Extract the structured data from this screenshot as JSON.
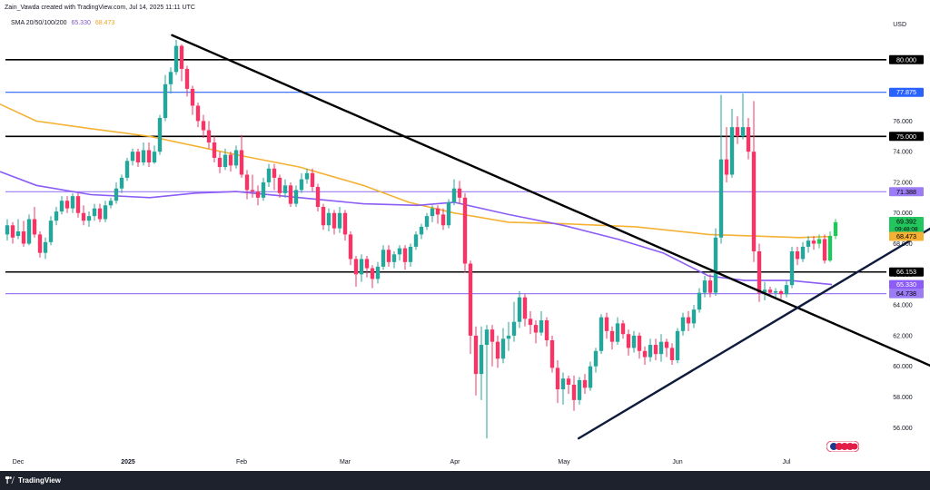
{
  "header": {
    "created_by": "Zain_Vawda created with TradingView.com, Jul 14, 2025 11:11 UTC",
    "indicator_label": "SMA 20/50/100/200",
    "indicator_value_1": "65.330",
    "indicator_value_2": "68.473",
    "currency": "USD"
  },
  "footer": {
    "brand": "TradingView"
  },
  "colors": {
    "up": "#26a69a",
    "up_bright": "#22c55e",
    "down": "#f23666",
    "sma_orange": "#f5b133",
    "sma_purple": "#8b5cf6",
    "line_black": "#000000",
    "line_blue": "#2962ff",
    "line_purple": "#9c7cf4",
    "trend_navy": "#0f1b3d"
  },
  "chart_data": {
    "type": "candlestick",
    "title": "",
    "xlabel": "",
    "ylabel": "USD",
    "ylim": [
      54.3,
      82.0
    ],
    "x_ticks": [
      "Dec",
      "2025",
      "Feb",
      "Mar",
      "Apr",
      "May",
      "Jun",
      "Jul"
    ],
    "y_ticks": [
      "56.000",
      "58.000",
      "60.000",
      "62.000",
      "64.000",
      "66.000",
      "68.000",
      "70.000",
      "72.000",
      "74.000",
      "76.000",
      "78.000"
    ],
    "price_labels": [
      {
        "text": "80.000",
        "value": 80.0,
        "style": "black"
      },
      {
        "text": "77.875",
        "value": 77.875,
        "style": "blue"
      },
      {
        "text": "75.000",
        "value": 75.0,
        "style": "black"
      },
      {
        "text": "71.388",
        "value": 71.388,
        "style": "purple"
      },
      {
        "text": "69.392",
        "value": 69.392,
        "style": "green",
        "sub": "09:48:08"
      },
      {
        "text": "68.473",
        "value": 68.473,
        "style": "orange"
      },
      {
        "text": "66.153",
        "value": 66.153,
        "style": "black"
      },
      {
        "text": "65.330",
        "value": 65.33,
        "style": "violet"
      },
      {
        "text": "64.738",
        "value": 64.738,
        "style": "purple"
      }
    ],
    "horizontal_levels": [
      {
        "value": 80.0,
        "color": "black"
      },
      {
        "value": 77.875,
        "color": "blue"
      },
      {
        "value": 75.0,
        "color": "black"
      },
      {
        "value": 71.388,
        "color": "purple"
      },
      {
        "value": 66.153,
        "color": "black"
      },
      {
        "value": 64.738,
        "color": "purple"
      }
    ],
    "trendlines": [
      {
        "name": "down",
        "from": [
          "2025-01-13",
          81.6
        ],
        "to": [
          "2025-08-15",
          59.6
        ]
      },
      {
        "name": "up",
        "from": [
          "2025-05-05",
          55.3
        ],
        "to": [
          "2025-08-15",
          69.6
        ]
      }
    ],
    "last_price": 69.392,
    "sma_200": [
      [
        0,
        77.1
      ],
      [
        40,
        76.0
      ],
      [
        100,
        75.5
      ],
      [
        165,
        75.0
      ],
      [
        260,
        73.8
      ],
      [
        330,
        73.0
      ],
      [
        400,
        71.8
      ],
      [
        450,
        70.7
      ],
      [
        500,
        70.0
      ],
      [
        560,
        69.4
      ],
      [
        620,
        69.3
      ],
      [
        700,
        69.1
      ],
      [
        780,
        68.6
      ],
      [
        830,
        68.5
      ],
      [
        880,
        68.4
      ],
      [
        916,
        68.47
      ]
    ],
    "sma_50": [
      [
        0,
        72.7
      ],
      [
        40,
        71.8
      ],
      [
        100,
        71.2
      ],
      [
        165,
        71.0
      ],
      [
        215,
        71.3
      ],
      [
        260,
        71.4
      ],
      [
        330,
        71.0
      ],
      [
        400,
        70.6
      ],
      [
        460,
        70.5
      ],
      [
        500,
        70.7
      ],
      [
        560,
        69.9
      ],
      [
        620,
        69.2
      ],
      [
        680,
        68.3
      ],
      [
        730,
        67.4
      ],
      [
        780,
        65.9
      ],
      [
        820,
        65.6
      ],
      [
        870,
        65.6
      ],
      [
        916,
        65.33
      ]
    ],
    "candles": [
      [
        8,
        68.6,
        69.2,
        69.6,
        68.2
      ],
      [
        14,
        69.2,
        68.4,
        69.4,
        68.0
      ],
      [
        20,
        68.5,
        68.8,
        69.6,
        68.3
      ],
      [
        26,
        68.8,
        68.0,
        69.5,
        67.8
      ],
      [
        32,
        68.0,
        69.6,
        69.9,
        67.9
      ],
      [
        38,
        69.6,
        68.6,
        70.4,
        68.4
      ],
      [
        44,
        68.6,
        67.4,
        68.8,
        67.1
      ],
      [
        50,
        67.4,
        68.1,
        68.4,
        67.0
      ],
      [
        56,
        68.1,
        69.5,
        69.8,
        67.9
      ],
      [
        62,
        69.5,
        70.1,
        70.4,
        69.2
      ],
      [
        68,
        70.1,
        70.8,
        71.1,
        69.9
      ],
      [
        74,
        70.8,
        70.3,
        71.1,
        70.0
      ],
      [
        80,
        70.3,
        71.1,
        71.3,
        70.0
      ],
      [
        86,
        71.1,
        70.0,
        71.3,
        69.7
      ],
      [
        92,
        70.0,
        69.5,
        70.5,
        69.2
      ],
      [
        98,
        69.5,
        69.8,
        70.1,
        69.1
      ],
      [
        104,
        69.8,
        70.3,
        70.6,
        69.5
      ],
      [
        110,
        70.3,
        69.6,
        70.6,
        69.4
      ],
      [
        116,
        69.6,
        70.5,
        70.8,
        69.4
      ],
      [
        122,
        70.5,
        70.8,
        71.0,
        70.3
      ],
      [
        128,
        70.8,
        71.6,
        72.0,
        70.6
      ],
      [
        134,
        71.6,
        72.3,
        72.5,
        71.3
      ],
      [
        140,
        72.3,
        73.4,
        73.6,
        72.1
      ],
      [
        146,
        73.4,
        74.0,
        74.2,
        73.1
      ],
      [
        152,
        74.0,
        73.3,
        74.2,
        73.0
      ],
      [
        158,
        73.3,
        74.1,
        74.6,
        73.1
      ],
      [
        164,
        74.1,
        73.3,
        74.6,
        73.0
      ],
      [
        170,
        73.3,
        74.0,
        74.4,
        73.2
      ],
      [
        176,
        74.0,
        76.2,
        76.4,
        73.8
      ],
      [
        182,
        76.2,
        78.4,
        79.0,
        76.0
      ],
      [
        188,
        78.4,
        79.2,
        79.5,
        77.8
      ],
      [
        194,
        79.2,
        80.9,
        81.3,
        79.0
      ],
      [
        200,
        80.9,
        79.4,
        81.0,
        78.6
      ],
      [
        206,
        79.4,
        78.1,
        79.6,
        77.6
      ],
      [
        212,
        78.1,
        77.0,
        78.3,
        76.4
      ],
      [
        218,
        77.0,
        76.0,
        77.2,
        75.6
      ],
      [
        224,
        76.0,
        75.4,
        76.4,
        74.9
      ],
      [
        230,
        75.4,
        74.6,
        76.0,
        74.2
      ],
      [
        236,
        74.6,
        73.6,
        75.0,
        73.3
      ],
      [
        242,
        73.6,
        73.0,
        74.0,
        72.6
      ],
      [
        248,
        73.0,
        73.8,
        74.2,
        72.8
      ],
      [
        254,
        73.8,
        73.1,
        74.0,
        72.7
      ],
      [
        260,
        73.1,
        74.1,
        74.4,
        72.9
      ],
      [
        266,
        74.1,
        72.5,
        75.1,
        72.3
      ],
      [
        272,
        72.5,
        71.5,
        72.8,
        70.9
      ],
      [
        278,
        71.5,
        71.4,
        72.5,
        71.0
      ],
      [
        284,
        71.4,
        71.0,
        71.8,
        70.5
      ],
      [
        290,
        71.0,
        72.0,
        72.3,
        70.8
      ],
      [
        296,
        72.0,
        72.9,
        73.2,
        71.7
      ],
      [
        302,
        72.9,
        72.3,
        73.2,
        71.5
      ],
      [
        308,
        72.3,
        71.3,
        72.5,
        71.0
      ],
      [
        314,
        71.3,
        71.8,
        72.2,
        71.0
      ],
      [
        320,
        71.8,
        70.6,
        72.0,
        70.4
      ],
      [
        326,
        70.6,
        71.5,
        71.8,
        70.4
      ],
      [
        332,
        71.5,
        72.2,
        72.6,
        71.3
      ],
      [
        338,
        72.2,
        72.6,
        72.9,
        71.9
      ],
      [
        344,
        72.6,
        71.7,
        72.9,
        71.4
      ],
      [
        350,
        71.7,
        70.4,
        71.9,
        70.1
      ],
      [
        356,
        70.4,
        69.2,
        70.6,
        68.9
      ],
      [
        362,
        69.2,
        70.0,
        70.3,
        68.8
      ],
      [
        368,
        70.0,
        69.0,
        70.2,
        68.6
      ],
      [
        374,
        69.0,
        70.0,
        70.4,
        68.7
      ],
      [
        380,
        70.0,
        68.6,
        70.2,
        68.2
      ],
      [
        386,
        68.6,
        67.0,
        68.8,
        66.6
      ],
      [
        392,
        67.0,
        66.0,
        67.2,
        65.2
      ],
      [
        398,
        66.0,
        67.0,
        67.3,
        65.5
      ],
      [
        404,
        67.0,
        66.4,
        67.2,
        65.8
      ],
      [
        410,
        66.4,
        65.7,
        66.6,
        65.1
      ],
      [
        416,
        65.7,
        66.5,
        66.8,
        65.4
      ],
      [
        422,
        66.5,
        67.6,
        67.9,
        66.3
      ],
      [
        428,
        67.6,
        66.8,
        67.9,
        66.5
      ],
      [
        434,
        66.8,
        67.3,
        67.5,
        66.4
      ],
      [
        440,
        67.3,
        67.7,
        67.9,
        66.9
      ],
      [
        446,
        67.7,
        66.8,
        67.9,
        66.3
      ],
      [
        452,
        66.8,
        67.8,
        68.0,
        66.5
      ],
      [
        458,
        67.8,
        68.6,
        68.8,
        67.6
      ],
      [
        464,
        68.6,
        69.1,
        69.3,
        68.3
      ],
      [
        470,
        69.1,
        69.8,
        70.0,
        68.9
      ],
      [
        476,
        69.8,
        70.3,
        70.5,
        69.4
      ],
      [
        482,
        70.3,
        69.9,
        70.5,
        69.3
      ],
      [
        488,
        69.9,
        69.2,
        70.3,
        68.9
      ],
      [
        494,
        69.2,
        70.7,
        70.9,
        69.0
      ],
      [
        500,
        70.7,
        71.6,
        72.2,
        70.5
      ],
      [
        506,
        71.6,
        71.0,
        72.1,
        70.6
      ],
      [
        512,
        71.0,
        66.7,
        71.3,
        66.1
      ],
      [
        518,
        66.7,
        62.0,
        66.9,
        60.8
      ],
      [
        524,
        62.0,
        59.5,
        62.6,
        58.1
      ],
      [
        530,
        59.5,
        61.4,
        62.6,
        57.8
      ],
      [
        536,
        61.4,
        62.4,
        62.7,
        55.3
      ],
      [
        542,
        62.4,
        61.6,
        62.7,
        60.0
      ],
      [
        548,
        61.6,
        60.5,
        62.0,
        59.9
      ],
      [
        554,
        60.5,
        61.8,
        62.5,
        60.2
      ],
      [
        560,
        61.8,
        62.0,
        62.9,
        61.0
      ],
      [
        566,
        62.0,
        62.9,
        64.2,
        61.6
      ],
      [
        572,
        62.9,
        64.5,
        64.9,
        62.5
      ],
      [
        578,
        64.5,
        63.1,
        64.7,
        62.6
      ],
      [
        584,
        63.1,
        62.7,
        63.6,
        62.1
      ],
      [
        590,
        62.7,
        62.2,
        63.0,
        61.5
      ],
      [
        596,
        62.2,
        63.0,
        63.6,
        62.0
      ],
      [
        602,
        63.0,
        61.7,
        63.2,
        61.3
      ],
      [
        608,
        61.7,
        59.9,
        62.0,
        59.6
      ],
      [
        614,
        59.9,
        58.5,
        60.4,
        57.6
      ],
      [
        620,
        58.5,
        59.2,
        59.6,
        57.5
      ],
      [
        626,
        59.2,
        58.8,
        59.4,
        58.2
      ],
      [
        632,
        58.8,
        57.8,
        59.4,
        57.1
      ],
      [
        638,
        57.8,
        59.1,
        59.3,
        57.5
      ],
      [
        644,
        59.1,
        58.6,
        59.5,
        58.2
      ],
      [
        650,
        58.6,
        60.0,
        60.3,
        58.4
      ],
      [
        656,
        60.0,
        61.0,
        61.2,
        59.6
      ],
      [
        662,
        61.0,
        63.2,
        63.4,
        60.8
      ],
      [
        668,
        63.2,
        62.3,
        63.5,
        61.8
      ],
      [
        674,
        62.3,
        61.6,
        62.6,
        61.1
      ],
      [
        680,
        61.6,
        62.8,
        63.2,
        61.4
      ],
      [
        686,
        62.8,
        62.1,
        63.0,
        61.8
      ],
      [
        692,
        62.1,
        61.2,
        62.4,
        60.7
      ],
      [
        698,
        61.2,
        62.0,
        62.3,
        60.9
      ],
      [
        704,
        62.0,
        61.0,
        62.2,
        60.5
      ],
      [
        710,
        61.0,
        60.6,
        61.3,
        60.1
      ],
      [
        716,
        60.6,
        61.4,
        61.8,
        60.3
      ],
      [
        722,
        61.4,
        60.8,
        61.8,
        60.4
      ],
      [
        728,
        60.8,
        61.6,
        62.1,
        60.3
      ],
      [
        734,
        61.6,
        61.2,
        61.8,
        60.6
      ],
      [
        740,
        61.2,
        60.4,
        61.5,
        60.1
      ],
      [
        746,
        60.4,
        62.3,
        62.5,
        60.2
      ],
      [
        752,
        62.3,
        63.2,
        63.5,
        62.0
      ],
      [
        758,
        63.2,
        62.8,
        63.6,
        62.3
      ],
      [
        764,
        62.8,
        63.7,
        64.0,
        62.5
      ],
      [
        770,
        63.7,
        64.8,
        65.1,
        63.5
      ],
      [
        776,
        64.8,
        65.6,
        65.9,
        64.5
      ],
      [
        782,
        65.6,
        64.8,
        66.0,
        64.5
      ],
      [
        788,
        64.8,
        68.4,
        69.0,
        64.6
      ],
      [
        794,
        68.4,
        73.5,
        77.7,
        68.0
      ],
      [
        800,
        73.5,
        72.5,
        75.6,
        72.0
      ],
      [
        806,
        72.5,
        75.6,
        76.8,
        72.3
      ],
      [
        812,
        75.6,
        75.0,
        76.3,
        74.5
      ],
      [
        818,
        75.0,
        75.6,
        77.8,
        74.8
      ],
      [
        824,
        75.6,
        74.0,
        76.2,
        73.5
      ],
      [
        830,
        74.0,
        67.5,
        77.3,
        66.8
      ],
      [
        836,
        67.5,
        64.8,
        68.0,
        64.2
      ],
      [
        842,
        64.8,
        65.0,
        65.5,
        64.3
      ],
      [
        848,
        65.0,
        64.8,
        65.2,
        64.6
      ],
      [
        854,
        64.8,
        64.9,
        65.1,
        64.4
      ],
      [
        860,
        64.9,
        64.7,
        65.0,
        64.4
      ],
      [
        866,
        64.7,
        65.3,
        65.6,
        64.5
      ],
      [
        872,
        65.3,
        67.5,
        67.8,
        65.1
      ],
      [
        878,
        67.5,
        67.0,
        67.8,
        66.6
      ],
      [
        884,
        67.0,
        67.8,
        68.1,
        66.8
      ],
      [
        890,
        67.8,
        68.2,
        68.5,
        67.4
      ],
      [
        896,
        68.2,
        68.0,
        68.5,
        67.6
      ],
      [
        902,
        68.0,
        68.3,
        68.6,
        67.7
      ],
      [
        908,
        68.3,
        66.9,
        68.6,
        66.7
      ],
      [
        914,
        66.9,
        68.5,
        68.8,
        66.8
      ],
      [
        920,
        68.5,
        69.4,
        69.6,
        68.3
      ]
    ]
  }
}
